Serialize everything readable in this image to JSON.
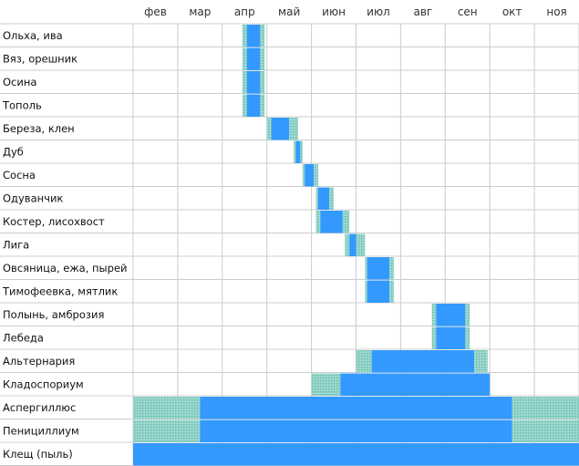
{
  "chart_data": {
    "type": "gantt",
    "title": "",
    "x_labels": [
      "фев",
      "мар",
      "апр",
      "май",
      "июн",
      "июл",
      "авг",
      "сен",
      "окт",
      "ноя"
    ],
    "colors": {
      "main": "#3399ff",
      "edge": "#8fd3c8"
    },
    "rows": [
      {
        "label": "Ольха, ива",
        "segments": [
          {
            "start": 2.45,
            "end": 2.55,
            "level": "edge"
          },
          {
            "start": 2.55,
            "end": 2.85,
            "level": "main"
          },
          {
            "start": 2.85,
            "end": 2.95,
            "level": "edge"
          }
        ]
      },
      {
        "label": "Вяз, орешник",
        "segments": [
          {
            "start": 2.45,
            "end": 2.55,
            "level": "edge"
          },
          {
            "start": 2.55,
            "end": 2.85,
            "level": "main"
          },
          {
            "start": 2.85,
            "end": 2.95,
            "level": "edge"
          }
        ]
      },
      {
        "label": "Осина",
        "segments": [
          {
            "start": 2.45,
            "end": 2.55,
            "level": "edge"
          },
          {
            "start": 2.55,
            "end": 2.85,
            "level": "main"
          },
          {
            "start": 2.85,
            "end": 2.95,
            "level": "edge"
          }
        ]
      },
      {
        "label": "Тополь",
        "segments": [
          {
            "start": 2.45,
            "end": 2.55,
            "level": "edge"
          },
          {
            "start": 2.55,
            "end": 2.85,
            "level": "main"
          },
          {
            "start": 2.85,
            "end": 2.95,
            "level": "edge"
          }
        ]
      },
      {
        "label": "Береза, клен",
        "segments": [
          {
            "start": 3.0,
            "end": 3.1,
            "level": "edge"
          },
          {
            "start": 3.1,
            "end": 3.5,
            "level": "main"
          },
          {
            "start": 3.5,
            "end": 3.7,
            "level": "edge"
          }
        ]
      },
      {
        "label": "Дуб",
        "segments": [
          {
            "start": 3.6,
            "end": 3.65,
            "level": "edge"
          },
          {
            "start": 3.65,
            "end": 3.75,
            "level": "main"
          },
          {
            "start": 3.75,
            "end": 3.8,
            "level": "edge"
          }
        ]
      },
      {
        "label": "Сосна",
        "segments": [
          {
            "start": 3.8,
            "end": 3.85,
            "level": "edge"
          },
          {
            "start": 3.85,
            "end": 4.05,
            "level": "main"
          },
          {
            "start": 4.05,
            "end": 4.15,
            "level": "edge"
          }
        ]
      },
      {
        "label": "Одуванчик",
        "segments": [
          {
            "start": 4.1,
            "end": 4.15,
            "level": "edge"
          },
          {
            "start": 4.15,
            "end": 4.4,
            "level": "main"
          },
          {
            "start": 4.4,
            "end": 4.5,
            "level": "edge"
          }
        ]
      },
      {
        "label": "Костер, лисохвост",
        "segments": [
          {
            "start": 4.1,
            "end": 4.2,
            "level": "edge"
          },
          {
            "start": 4.2,
            "end": 4.7,
            "level": "main"
          },
          {
            "start": 4.7,
            "end": 4.85,
            "level": "edge"
          }
        ]
      },
      {
        "label": "Лига",
        "segments": [
          {
            "start": 4.75,
            "end": 4.85,
            "level": "edge"
          },
          {
            "start": 4.85,
            "end": 5.0,
            "level": "main"
          },
          {
            "start": 5.0,
            "end": 5.2,
            "level": "edge"
          }
        ]
      },
      {
        "label": "Овсяница, ежа, пырей",
        "segments": [
          {
            "start": 5.2,
            "end": 5.25,
            "level": "edge"
          },
          {
            "start": 5.25,
            "end": 5.75,
            "level": "main"
          },
          {
            "start": 5.75,
            "end": 5.85,
            "level": "edge"
          }
        ]
      },
      {
        "label": "Тимофеевка, мятлик",
        "segments": [
          {
            "start": 5.2,
            "end": 5.25,
            "level": "edge"
          },
          {
            "start": 5.25,
            "end": 5.75,
            "level": "main"
          },
          {
            "start": 5.75,
            "end": 5.85,
            "level": "edge"
          }
        ]
      },
      {
        "label": "Полынь, амброзия",
        "segments": [
          {
            "start": 6.7,
            "end": 6.8,
            "level": "edge"
          },
          {
            "start": 6.8,
            "end": 7.45,
            "level": "main"
          },
          {
            "start": 7.45,
            "end": 7.55,
            "level": "edge"
          }
        ]
      },
      {
        "label": "Лебеда",
        "segments": [
          {
            "start": 6.7,
            "end": 6.8,
            "level": "edge"
          },
          {
            "start": 6.8,
            "end": 7.45,
            "level": "main"
          },
          {
            "start": 7.45,
            "end": 7.55,
            "level": "edge"
          }
        ]
      },
      {
        "label": "Альтернария",
        "segments": [
          {
            "start": 5.0,
            "end": 5.35,
            "level": "edge"
          },
          {
            "start": 5.35,
            "end": 7.65,
            "level": "main"
          },
          {
            "start": 7.65,
            "end": 7.95,
            "level": "edge"
          }
        ]
      },
      {
        "label": "Кладоспориум",
        "segments": [
          {
            "start": 4.0,
            "end": 4.65,
            "level": "edge"
          },
          {
            "start": 4.65,
            "end": 8.0,
            "level": "main"
          }
        ]
      },
      {
        "label": "Аспергиллюс",
        "segments": [
          {
            "start": 0.0,
            "end": 1.5,
            "level": "edge"
          },
          {
            "start": 1.5,
            "end": 8.5,
            "level": "main"
          },
          {
            "start": 8.5,
            "end": 10.0,
            "level": "edge"
          }
        ]
      },
      {
        "label": "Пенициллиум",
        "segments": [
          {
            "start": 0.0,
            "end": 1.5,
            "level": "edge"
          },
          {
            "start": 1.5,
            "end": 8.5,
            "level": "main"
          },
          {
            "start": 8.5,
            "end": 10.0,
            "level": "edge"
          }
        ]
      },
      {
        "label": "Клещ (пыль)",
        "segments": [
          {
            "start": 0.0,
            "end": 10.0,
            "level": "main"
          }
        ]
      }
    ]
  }
}
